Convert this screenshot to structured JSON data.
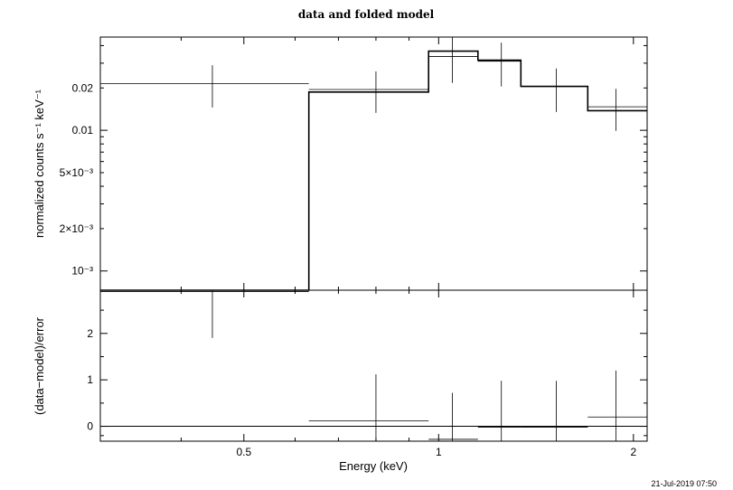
{
  "timestamp": "21-Jul-2019 07:50",
  "chart_data": [
    {
      "type": "line",
      "title": "data and folded model",
      "xlabel": "",
      "ylabel": "normalized counts s⁻¹ keV⁻¹",
      "xscale": "log",
      "yscale": "log",
      "xlim": [
        0.3,
        2.1
      ],
      "ylim": [
        0.00073,
        0.046
      ],
      "y_tick_labels": [
        "10⁻³",
        "2×10⁻³",
        "5×10⁻³",
        "0.01",
        "0.02"
      ],
      "y_tick_values": [
        0.001,
        0.002,
        0.005,
        0.01,
        0.02
      ],
      "series": [
        {
          "style": "data",
          "points": [
            {
              "x": 0.447,
              "x_lo": 0.3,
              "x_hi": 0.63,
              "y": 0.0215,
              "y_lo": 0.0145,
              "y_hi": 0.029
            },
            {
              "x": 0.8,
              "x_lo": 0.63,
              "x_hi": 0.965,
              "y": 0.0195,
              "y_lo": 0.0133,
              "y_hi": 0.0262
            },
            {
              "x": 1.05,
              "x_lo": 0.965,
              "x_hi": 1.15,
              "y": 0.0335,
              "y_lo": 0.0217,
              "y_hi": 0.046
            },
            {
              "x": 1.25,
              "x_lo": 1.15,
              "x_hi": 1.34,
              "y": 0.031,
              "y_lo": 0.0205,
              "y_hi": 0.042
            },
            {
              "x": 1.52,
              "x_lo": 1.34,
              "x_hi": 1.7,
              "y": 0.0205,
              "y_lo": 0.0135,
              "y_hi": 0.0275
            },
            {
              "x": 1.88,
              "x_lo": 1.7,
              "x_hi": 2.1,
              "y": 0.0147,
              "y_lo": 0.0099,
              "y_hi": 0.0197
            }
          ]
        },
        {
          "style": "model-step",
          "bins": [
            {
              "x_lo": 0.3,
              "x_hi": 0.63,
              "y": 0.00073
            },
            {
              "x_lo": 0.63,
              "x_hi": 0.965,
              "y": 0.0187
            },
            {
              "x_lo": 0.965,
              "x_hi": 1.15,
              "y": 0.0365
            },
            {
              "x_lo": 1.15,
              "x_hi": 1.34,
              "y": 0.0315
            },
            {
              "x_lo": 1.34,
              "x_hi": 1.7,
              "y": 0.0205
            },
            {
              "x_lo": 1.7,
              "x_hi": 2.1,
              "y": 0.0138
            }
          ]
        }
      ]
    },
    {
      "type": "scatter",
      "title": "",
      "xlabel": "Energy (keV)",
      "ylabel": "(data−model)/error",
      "xscale": "log",
      "xlim": [
        0.3,
        2.1
      ],
      "ylim": [
        -0.32,
        2.93
      ],
      "x_tick_labels": [
        "0.5",
        "1",
        "2"
      ],
      "x_tick_values": [
        0.5,
        1,
        2
      ],
      "y_tick_labels": [
        "0",
        "1",
        "2"
      ],
      "y_tick_values": [
        0,
        1,
        2
      ],
      "zero_line": 0,
      "series": [
        {
          "style": "residuals",
          "points": [
            {
              "x": 0.447,
              "x_lo": 0.3,
              "x_hi": 0.63,
              "y": 2.9,
              "y_lo": 1.9,
              "y_hi": 3.0
            },
            {
              "x": 0.8,
              "x_lo": 0.63,
              "x_hi": 0.965,
              "y": 0.12,
              "y_lo": -0.88,
              "y_hi": 1.12
            },
            {
              "x": 1.05,
              "x_lo": 0.965,
              "x_hi": 1.15,
              "y": -0.28,
              "y_lo": -1.28,
              "y_hi": 0.72
            },
            {
              "x": 1.25,
              "x_lo": 1.15,
              "x_hi": 1.34,
              "y": -0.02,
              "y_lo": -1.02,
              "y_hi": 0.98
            },
            {
              "x": 1.52,
              "x_lo": 1.34,
              "x_hi": 1.7,
              "y": -0.02,
              "y_lo": -1.02,
              "y_hi": 0.98
            },
            {
              "x": 1.88,
              "x_lo": 1.7,
              "x_hi": 2.1,
              "y": 0.2,
              "y_lo": -0.8,
              "y_hi": 1.2
            }
          ]
        }
      ]
    }
  ]
}
